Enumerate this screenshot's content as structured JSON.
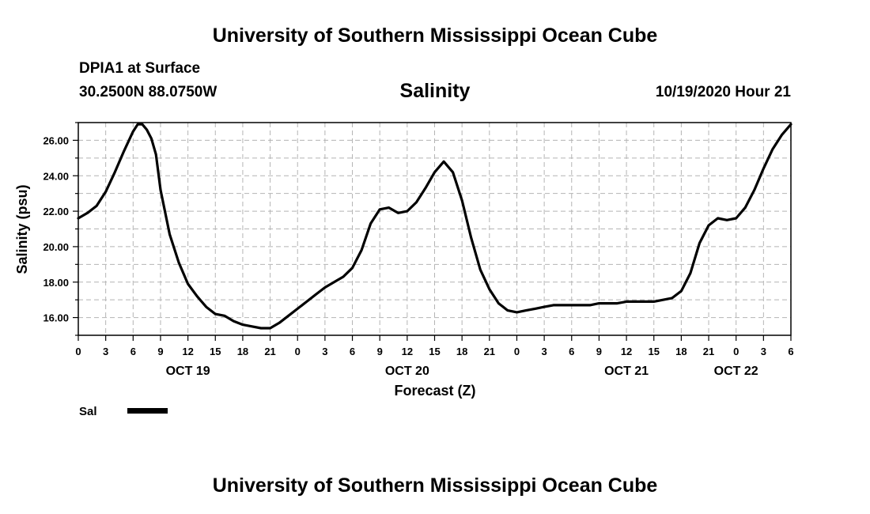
{
  "header": {
    "title": "University of Southern Mississippi Ocean Cube",
    "station": "DPIA1 at Surface",
    "coordinates": "30.2500N 88.0750W",
    "datetime": "10/19/2020 Hour 21"
  },
  "footer": {
    "title": "University of Southern Mississippi Ocean Cube"
  },
  "colors": {
    "line": "#000000",
    "grid": "#b4b4b4",
    "frame": "#000000"
  },
  "chart_data": {
    "type": "line",
    "title": "Salinity",
    "xlabel": "Forecast (Z)",
    "ylabel": "Salinity (psu)",
    "ylim": [
      15,
      27
    ],
    "xlim": [
      0,
      78
    ],
    "grid": true,
    "legend_placement": "bottom-left",
    "x_tick_labels": [
      "0",
      "3",
      "6",
      "9",
      "12",
      "15",
      "18",
      "21",
      "0",
      "3",
      "6",
      "9",
      "12",
      "15",
      "18",
      "21",
      "0",
      "3",
      "6",
      "9",
      "12",
      "15",
      "18",
      "21",
      "0",
      "3",
      "6"
    ],
    "y_ticks": [
      16,
      18,
      20,
      22,
      24,
      26
    ],
    "y_tick_labels": [
      "16.00",
      "18.00",
      "20.00",
      "22.00",
      "24.00",
      "26.00"
    ],
    "date_labels": [
      {
        "label": "OCT 19",
        "hour": 12
      },
      {
        "label": "OCT 20",
        "hour": 36
      },
      {
        "label": "OCT 21",
        "hour": 60
      },
      {
        "label": "OCT 22",
        "hour": 72
      }
    ],
    "series": [
      {
        "name": "Sal",
        "x": [
          0,
          1,
          2,
          3,
          4,
          5,
          6,
          6.5,
          7,
          7.5,
          8,
          8.5,
          9,
          10,
          11,
          12,
          13,
          14,
          15,
          16,
          17,
          18,
          19,
          20,
          21,
          22,
          23,
          24,
          25,
          26,
          27,
          28,
          29,
          30,
          31,
          32,
          33,
          34,
          35,
          36,
          37,
          38,
          39,
          40,
          41,
          42,
          43,
          44,
          45,
          46,
          47,
          48,
          49,
          50,
          51,
          52,
          53,
          54,
          55,
          56,
          57,
          58,
          59,
          60,
          61,
          62,
          63,
          64,
          65,
          66,
          67,
          68,
          69,
          70,
          71,
          72,
          73,
          74,
          75,
          76,
          77,
          78
        ],
        "values": [
          21.6,
          21.9,
          22.3,
          23.1,
          24.2,
          25.4,
          26.5,
          26.9,
          26.9,
          26.6,
          26.1,
          25.2,
          23.2,
          20.7,
          19.1,
          17.9,
          17.2,
          16.6,
          16.2,
          16.1,
          15.8,
          15.6,
          15.5,
          15.4,
          15.4,
          15.7,
          16.1,
          16.5,
          16.9,
          17.3,
          17.7,
          18.0,
          18.3,
          18.8,
          19.8,
          21.3,
          22.1,
          22.2,
          21.9,
          22.0,
          22.5,
          23.3,
          24.2,
          24.8,
          24.2,
          22.6,
          20.5,
          18.7,
          17.6,
          16.8,
          16.4,
          16.3,
          16.4,
          16.5,
          16.6,
          16.7,
          16.7,
          16.7,
          16.7,
          16.7,
          16.8,
          16.8,
          16.8,
          16.9,
          16.9,
          16.9,
          16.9,
          17.0,
          17.1,
          17.5,
          18.5,
          20.2,
          21.2,
          21.6,
          21.5,
          21.6,
          22.2,
          23.2,
          24.4,
          25.5,
          26.3,
          26.9
        ]
      }
    ]
  }
}
